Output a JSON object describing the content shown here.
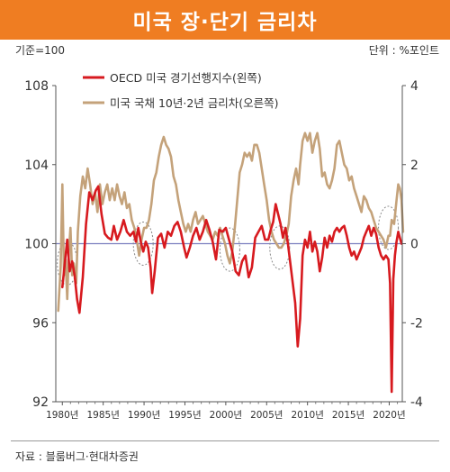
{
  "header": {
    "title": "미국 장·단기 금리차"
  },
  "units": {
    "left": "기준=100",
    "right": "단위 : %포인트"
  },
  "source": "자료 : 블룸버그·현대차증권",
  "colors": {
    "oecd": "#d71a1f",
    "spread": "#c4a27a",
    "accent": "#ef7d22",
    "zero_line": "#7b7fbf"
  },
  "chart_data": {
    "type": "line",
    "title": "미국 장·단기 금리차",
    "x_ticks": [
      "1980년",
      "1985년",
      "1990년",
      "1995년",
      "2000년",
      "2005년",
      "2010년",
      "2015년",
      "2020년"
    ],
    "x_tick_values": [
      1980,
      1985,
      1990,
      1995,
      2000,
      2005,
      2010,
      2015,
      2020
    ],
    "xlim": [
      1979.2,
      2021.6
    ],
    "y_left": {
      "label": "기준=100",
      "ticks": [
        "108",
        "104",
        "100",
        "96",
        "92"
      ],
      "tick_values": [
        108,
        104,
        100,
        96,
        92
      ],
      "lim": [
        92,
        108
      ]
    },
    "y_right": {
      "label": "%포인트",
      "ticks": [
        "4",
        "2",
        "0",
        "-2",
        "-4"
      ],
      "tick_values": [
        4,
        2,
        0,
        -2,
        -4
      ],
      "lim": [
        -4,
        4
      ]
    },
    "legend": {
      "placement": "top-left"
    },
    "series": [
      {
        "name": "OECD 미국 경기선행지수(왼쪽)",
        "axis": "left",
        "points": [
          [
            1980.0,
            97.8
          ],
          [
            1980.3,
            99.0
          ],
          [
            1980.6,
            100.2
          ],
          [
            1980.9,
            98.6
          ],
          [
            1981.2,
            99.1
          ],
          [
            1981.5,
            98.4
          ],
          [
            1981.8,
            97.2
          ],
          [
            1982.1,
            96.5
          ],
          [
            1982.5,
            98.3
          ],
          [
            1982.9,
            101.0
          ],
          [
            1983.3,
            102.6
          ],
          [
            1983.7,
            102.2
          ],
          [
            1984.1,
            102.7
          ],
          [
            1984.4,
            102.9
          ],
          [
            1984.8,
            101.5
          ],
          [
            1985.2,
            100.5
          ],
          [
            1985.6,
            100.3
          ],
          [
            1986.0,
            100.2
          ],
          [
            1986.3,
            100.9
          ],
          [
            1986.7,
            100.2
          ],
          [
            1987.1,
            100.6
          ],
          [
            1987.5,
            101.2
          ],
          [
            1987.9,
            100.6
          ],
          [
            1988.3,
            100.4
          ],
          [
            1988.7,
            100.6
          ],
          [
            1989.0,
            100.1
          ],
          [
            1989.3,
            100.8
          ],
          [
            1989.6,
            100.1
          ],
          [
            1989.9,
            99.6
          ],
          [
            1990.2,
            100.1
          ],
          [
            1990.5,
            99.8
          ],
          [
            1990.8,
            98.8
          ],
          [
            1991.0,
            97.5
          ],
          [
            1991.3,
            98.6
          ],
          [
            1991.7,
            100.3
          ],
          [
            1992.1,
            100.5
          ],
          [
            1992.5,
            99.8
          ],
          [
            1992.9,
            100.6
          ],
          [
            1993.3,
            100.4
          ],
          [
            1993.7,
            100.9
          ],
          [
            1994.1,
            101.1
          ],
          [
            1994.5,
            100.6
          ],
          [
            1994.9,
            99.8
          ],
          [
            1995.2,
            99.3
          ],
          [
            1995.6,
            99.8
          ],
          [
            1996.0,
            100.4
          ],
          [
            1996.4,
            100.8
          ],
          [
            1996.8,
            100.2
          ],
          [
            1997.2,
            100.6
          ],
          [
            1997.6,
            101.2
          ],
          [
            1998.0,
            100.7
          ],
          [
            1998.4,
            100.1
          ],
          [
            1998.8,
            99.2
          ],
          [
            1999.2,
            100.7
          ],
          [
            1999.6,
            100.6
          ],
          [
            2000.0,
            100.8
          ],
          [
            2000.4,
            100.2
          ],
          [
            2000.8,
            99.6
          ],
          [
            2001.2,
            98.6
          ],
          [
            2001.6,
            98.4
          ],
          [
            2002.0,
            99.1
          ],
          [
            2002.4,
            99.4
          ],
          [
            2002.8,
            98.3
          ],
          [
            2003.2,
            98.8
          ],
          [
            2003.6,
            100.3
          ],
          [
            2004.0,
            100.6
          ],
          [
            2004.4,
            100.9
          ],
          [
            2004.8,
            100.2
          ],
          [
            2005.2,
            100.2
          ],
          [
            2005.5,
            100.7
          ],
          [
            2005.8,
            101.1
          ],
          [
            2006.1,
            102.0
          ],
          [
            2006.4,
            101.5
          ],
          [
            2006.7,
            101.0
          ],
          [
            2007.0,
            100.3
          ],
          [
            2007.3,
            100.8
          ],
          [
            2007.6,
            100.0
          ],
          [
            2007.9,
            99.0
          ],
          [
            2008.2,
            98.0
          ],
          [
            2008.5,
            97.0
          ],
          [
            2008.8,
            94.8
          ],
          [
            2009.1,
            96.2
          ],
          [
            2009.4,
            99.4
          ],
          [
            2009.7,
            100.2
          ],
          [
            2010.0,
            99.8
          ],
          [
            2010.3,
            100.6
          ],
          [
            2010.6,
            99.6
          ],
          [
            2010.9,
            100.1
          ],
          [
            2011.2,
            99.6
          ],
          [
            2011.5,
            98.6
          ],
          [
            2011.8,
            99.3
          ],
          [
            2012.1,
            100.3
          ],
          [
            2012.4,
            99.8
          ],
          [
            2012.7,
            100.4
          ],
          [
            2013.0,
            100.1
          ],
          [
            2013.3,
            100.6
          ],
          [
            2013.6,
            100.8
          ],
          [
            2013.9,
            100.6
          ],
          [
            2014.2,
            100.8
          ],
          [
            2014.5,
            100.9
          ],
          [
            2014.8,
            100.4
          ],
          [
            2015.1,
            99.8
          ],
          [
            2015.4,
            99.4
          ],
          [
            2015.7,
            99.6
          ],
          [
            2016.0,
            99.2
          ],
          [
            2016.3,
            99.5
          ],
          [
            2016.6,
            99.8
          ],
          [
            2016.9,
            100.3
          ],
          [
            2017.2,
            100.6
          ],
          [
            2017.5,
            100.9
          ],
          [
            2017.8,
            100.4
          ],
          [
            2018.1,
            100.8
          ],
          [
            2018.4,
            100.5
          ],
          [
            2018.7,
            99.8
          ],
          [
            2019.0,
            99.4
          ],
          [
            2019.3,
            99.2
          ],
          [
            2019.6,
            99.4
          ],
          [
            2019.9,
            99.2
          ],
          [
            2020.1,
            98.0
          ],
          [
            2020.3,
            92.5
          ],
          [
            2020.5,
            98.2
          ],
          [
            2020.7,
            99.4
          ],
          [
            2020.9,
            100.1
          ],
          [
            2021.1,
            100.6
          ],
          [
            2021.3,
            100.3
          ],
          [
            2021.5,
            100.0
          ]
        ]
      },
      {
        "name": "미국 국채 10년·2년 금리차(오른쪽)",
        "axis": "right",
        "points": [
          [
            1979.5,
            -1.7
          ],
          [
            1979.8,
            -0.6
          ],
          [
            1980.0,
            1.5
          ],
          [
            1980.2,
            -0.8
          ],
          [
            1980.4,
            -0.4
          ],
          [
            1980.6,
            -1.4
          ],
          [
            1980.8,
            -0.2
          ],
          [
            1981.0,
            0.4
          ],
          [
            1981.2,
            -0.8
          ],
          [
            1981.4,
            -0.5
          ],
          [
            1981.7,
            -1.0
          ],
          [
            1981.9,
            0.3
          ],
          [
            1982.2,
            1.2
          ],
          [
            1982.5,
            1.7
          ],
          [
            1982.8,
            1.4
          ],
          [
            1983.1,
            1.9
          ],
          [
            1983.4,
            1.5
          ],
          [
            1983.7,
            1.0
          ],
          [
            1984.0,
            1.3
          ],
          [
            1984.3,
            0.8
          ],
          [
            1984.6,
            1.5
          ],
          [
            1984.9,
            1.0
          ],
          [
            1985.2,
            1.3
          ],
          [
            1985.5,
            1.5
          ],
          [
            1985.8,
            1.1
          ],
          [
            1986.1,
            1.4
          ],
          [
            1986.4,
            1.1
          ],
          [
            1986.7,
            1.5
          ],
          [
            1987.0,
            1.2
          ],
          [
            1987.3,
            1.0
          ],
          [
            1987.6,
            1.3
          ],
          [
            1987.9,
            0.9
          ],
          [
            1988.2,
            1.0
          ],
          [
            1988.5,
            0.6
          ],
          [
            1988.8,
            0.4
          ],
          [
            1989.1,
            0.1
          ],
          [
            1989.4,
            -0.3
          ],
          [
            1989.7,
            0.1
          ],
          [
            1990.0,
            0.4
          ],
          [
            1990.3,
            0.4
          ],
          [
            1990.6,
            0.6
          ],
          [
            1990.9,
            1.0
          ],
          [
            1991.2,
            1.6
          ],
          [
            1991.5,
            1.8
          ],
          [
            1991.8,
            2.2
          ],
          [
            1992.1,
            2.5
          ],
          [
            1992.4,
            2.7
          ],
          [
            1992.7,
            2.5
          ],
          [
            1993.0,
            2.4
          ],
          [
            1993.3,
            2.2
          ],
          [
            1993.6,
            1.7
          ],
          [
            1993.9,
            1.5
          ],
          [
            1994.2,
            1.1
          ],
          [
            1994.5,
            0.8
          ],
          [
            1994.8,
            0.5
          ],
          [
            1995.1,
            0.3
          ],
          [
            1995.4,
            0.5
          ],
          [
            1995.7,
            0.3
          ],
          [
            1996.0,
            0.6
          ],
          [
            1996.3,
            0.8
          ],
          [
            1996.6,
            0.5
          ],
          [
            1996.9,
            0.6
          ],
          [
            1997.2,
            0.7
          ],
          [
            1997.5,
            0.5
          ],
          [
            1997.8,
            0.3
          ],
          [
            1998.1,
            0.2
          ],
          [
            1998.4,
            0.1
          ],
          [
            1998.7,
            0.3
          ],
          [
            1999.0,
            0.2
          ],
          [
            1999.3,
            0.4
          ],
          [
            1999.6,
            0.2
          ],
          [
            1999.9,
            0.0
          ],
          [
            2000.2,
            -0.3
          ],
          [
            2000.5,
            -0.5
          ],
          [
            2000.8,
            -0.2
          ],
          [
            2001.1,
            0.4
          ],
          [
            2001.4,
            1.1
          ],
          [
            2001.7,
            1.8
          ],
          [
            2002.0,
            2.0
          ],
          [
            2002.3,
            2.3
          ],
          [
            2002.6,
            2.2
          ],
          [
            2002.9,
            2.3
          ],
          [
            2003.2,
            2.1
          ],
          [
            2003.5,
            2.5
          ],
          [
            2003.8,
            2.5
          ],
          [
            2004.1,
            2.3
          ],
          [
            2004.4,
            1.9
          ],
          [
            2004.7,
            1.5
          ],
          [
            2005.0,
            1.1
          ],
          [
            2005.3,
            0.6
          ],
          [
            2005.6,
            0.3
          ],
          [
            2005.9,
            0.1
          ],
          [
            2006.2,
            0.0
          ],
          [
            2006.5,
            -0.1
          ],
          [
            2006.8,
            -0.1
          ],
          [
            2007.1,
            0.0
          ],
          [
            2007.4,
            0.2
          ],
          [
            2007.7,
            0.5
          ],
          [
            2008.0,
            1.2
          ],
          [
            2008.3,
            1.6
          ],
          [
            2008.6,
            1.9
          ],
          [
            2008.9,
            1.5
          ],
          [
            2009.1,
            2.0
          ],
          [
            2009.4,
            2.6
          ],
          [
            2009.7,
            2.8
          ],
          [
            2010.0,
            2.6
          ],
          [
            2010.3,
            2.8
          ],
          [
            2010.6,
            2.3
          ],
          [
            2010.9,
            2.6
          ],
          [
            2011.2,
            2.8
          ],
          [
            2011.5,
            2.4
          ],
          [
            2011.8,
            1.7
          ],
          [
            2012.1,
            1.8
          ],
          [
            2012.4,
            1.5
          ],
          [
            2012.7,
            1.4
          ],
          [
            2013.0,
            1.6
          ],
          [
            2013.3,
            1.9
          ],
          [
            2013.6,
            2.5
          ],
          [
            2013.9,
            2.6
          ],
          [
            2014.2,
            2.3
          ],
          [
            2014.5,
            2.0
          ],
          [
            2014.8,
            1.9
          ],
          [
            2015.1,
            1.6
          ],
          [
            2015.4,
            1.7
          ],
          [
            2015.7,
            1.4
          ],
          [
            2016.0,
            1.2
          ],
          [
            2016.3,
            1.0
          ],
          [
            2016.6,
            0.8
          ],
          [
            2016.9,
            1.2
          ],
          [
            2017.2,
            1.1
          ],
          [
            2017.5,
            0.9
          ],
          [
            2017.8,
            0.8
          ],
          [
            2018.1,
            0.6
          ],
          [
            2018.4,
            0.4
          ],
          [
            2018.7,
            0.3
          ],
          [
            2019.0,
            0.2
          ],
          [
            2019.3,
            0.1
          ],
          [
            2019.6,
            -0.1
          ],
          [
            2019.9,
            0.2
          ],
          [
            2020.1,
            0.2
          ],
          [
            2020.3,
            0.6
          ],
          [
            2020.6,
            0.5
          ],
          [
            2020.9,
            1.1
          ],
          [
            2021.1,
            1.5
          ],
          [
            2021.3,
            1.4
          ],
          [
            2021.5,
            1.1
          ],
          [
            2021.7,
            0.3
          ]
        ]
      }
    ],
    "highlight_ellipses": [
      {
        "x_center": 1980.6,
        "y_left_center": 99.0
      },
      {
        "x_center": 1989.9,
        "y_left_center": 100.0
      },
      {
        "x_center": 2000.5,
        "y_left_center": 99.7
      },
      {
        "x_center": 2006.6,
        "y_left_center": 99.8
      },
      {
        "x_center": 2019.9,
        "y_left_center": 100.8
      }
    ]
  }
}
